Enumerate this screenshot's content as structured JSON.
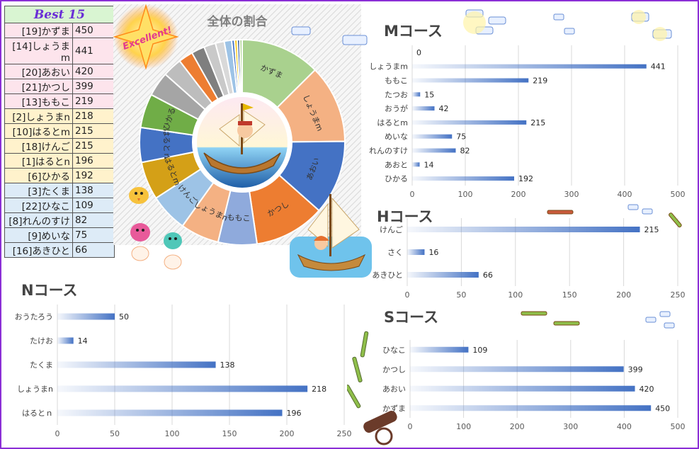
{
  "ranking": {
    "title": "Best 15",
    "rows": [
      {
        "name": "[19]かずま",
        "score": 450,
        "color": "#fde4ec"
      },
      {
        "name": "[14]しょうまm",
        "score": 441,
        "color": "#fde4ec"
      },
      {
        "name": "[20]あおい",
        "score": 420,
        "color": "#fde4ec"
      },
      {
        "name": "[21]かつし",
        "score": 399,
        "color": "#fde4ec"
      },
      {
        "name": "[13]ももこ",
        "score": 219,
        "color": "#fde4ec"
      },
      {
        "name": "[2]しょうまn",
        "score": 218,
        "color": "#fff2cc"
      },
      {
        "name": "[10]はるとm",
        "score": 215,
        "color": "#fff2cc"
      },
      {
        "name": "[18]けんご",
        "score": 215,
        "color": "#fff2cc"
      },
      {
        "name": "[1]はるとn",
        "score": 196,
        "color": "#fff2cc"
      },
      {
        "name": "[6]ひかる",
        "score": 192,
        "color": "#fff2cc"
      },
      {
        "name": "[3]たくま",
        "score": 138,
        "color": "#ddebf7"
      },
      {
        "name": "[22]ひなこ",
        "score": 109,
        "color": "#ddebf7"
      },
      {
        "name": "[8]れんのすけ",
        "score": 82,
        "color": "#ddebf7"
      },
      {
        "name": "[9]めいな",
        "score": 75,
        "color": "#ddebf7"
      },
      {
        "name": "[16]あきひと",
        "score": 66,
        "color": "#ddebf7"
      }
    ]
  },
  "badge": {
    "text": "Excellent!"
  },
  "chart_data": [
    {
      "id": "pie",
      "type": "pie",
      "title": "全体の割合",
      "slices": [
        {
          "label": "かずま",
          "value": 450,
          "color": "#a9d18e"
        },
        {
          "label": "しょうまm",
          "value": 441,
          "color": "#f4b183"
        },
        {
          "label": "あおい",
          "value": 420,
          "color": "#4472c4"
        },
        {
          "label": "かつし",
          "value": 399,
          "color": "#ed7d31"
        },
        {
          "label": "ももこ",
          "value": 219,
          "color": "#8faadc"
        },
        {
          "label": "しょうまn",
          "value": 218,
          "color": "#f4b183"
        },
        {
          "label": "けんご",
          "value": 215,
          "color": "#9dc3e6"
        },
        {
          "label": "はるとm",
          "value": 215,
          "color": "#d4a017"
        },
        {
          "label": "はるとｎ",
          "value": 196,
          "color": "#4472c4"
        },
        {
          "label": "ひかる",
          "value": 192,
          "color": "#70ad47"
        },
        {
          "label": "",
          "value": 138,
          "color": "#a5a5a5"
        },
        {
          "label": "",
          "value": 109,
          "color": "#bdbdbd"
        },
        {
          "label": "",
          "value": 82,
          "color": "#ed7d31"
        },
        {
          "label": "",
          "value": 75,
          "color": "#7f7f7f"
        },
        {
          "label": "",
          "value": 66,
          "color": "#c9c9c9"
        },
        {
          "label": "",
          "value": 50,
          "color": "#d9d9d9"
        },
        {
          "label": "",
          "value": 42,
          "color": "#9dc3e6"
        },
        {
          "label": "",
          "value": 16,
          "color": "#4472c4"
        },
        {
          "label": "",
          "value": 15,
          "color": "#ffc000"
        },
        {
          "label": "",
          "value": 14,
          "color": "#2f5597"
        },
        {
          "label": "",
          "value": 14,
          "color": "#a9d18e"
        }
      ]
    },
    {
      "id": "M",
      "type": "bar",
      "title": "Mコース",
      "orientation": "horizontal",
      "categories": [
        "",
        "しょうまm",
        "ももこ",
        "たつお",
        "おうが",
        "はるとm",
        "めいな",
        "れんのすけ",
        "あおと",
        "ひかる"
      ],
      "values": [
        0,
        441,
        219,
        15,
        42,
        215,
        75,
        82,
        14,
        192
      ],
      "xlim": [
        0,
        500
      ],
      "xticks": [
        0,
        100,
        200,
        300,
        400,
        500
      ],
      "grid": true,
      "bar_color": "#4472c4"
    },
    {
      "id": "H",
      "type": "bar",
      "title": "Hコース",
      "orientation": "horizontal",
      "categories": [
        "けんご",
        "さく",
        "あきひと"
      ],
      "values": [
        215,
        16,
        66
      ],
      "xlim": [
        0,
        250
      ],
      "xticks": [
        0,
        50,
        100,
        150,
        200,
        250
      ],
      "grid": true,
      "bar_color": "#4472c4"
    },
    {
      "id": "N",
      "type": "bar",
      "title": "Nコース",
      "orientation": "horizontal",
      "categories": [
        "おうたろう",
        "たけお",
        "たくま",
        "しょうまn",
        "はるとｎ"
      ],
      "values": [
        50,
        14,
        138,
        218,
        196
      ],
      "xlim": [
        0,
        250
      ],
      "xticks": [
        0,
        50,
        100,
        150,
        200,
        250
      ],
      "grid": true,
      "bar_color": "#4472c4"
    },
    {
      "id": "S",
      "type": "bar",
      "title": "Sコース",
      "orientation": "horizontal",
      "categories": [
        "ひなこ",
        "かつし",
        "あおい",
        "かずま"
      ],
      "values": [
        109,
        399,
        420,
        450
      ],
      "xlim": [
        0,
        500
      ],
      "xticks": [
        0,
        100,
        200,
        300,
        400,
        500
      ],
      "grid": true,
      "bar_color": "#4472c4"
    }
  ]
}
